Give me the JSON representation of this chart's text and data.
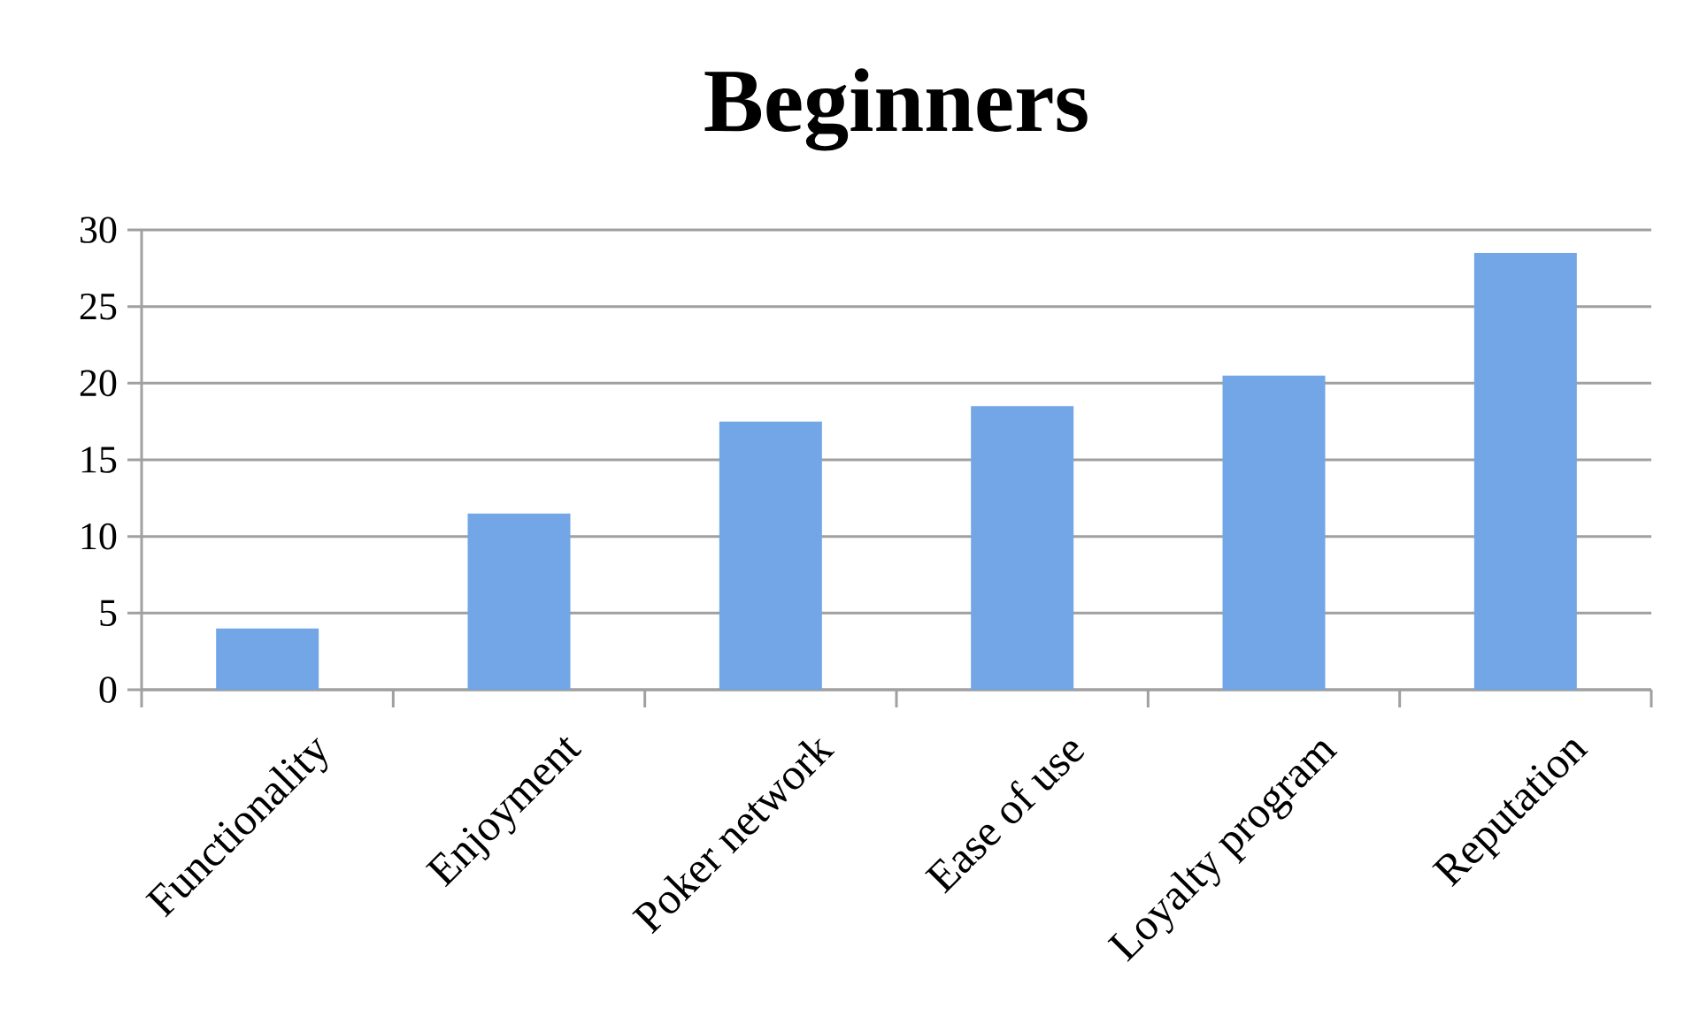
{
  "chart_data": {
    "type": "bar",
    "title": "Beginners",
    "categories": [
      "Functionality",
      "Enjoyment",
      "Poker network",
      "Ease of use",
      "Loyalty program",
      "Reputation"
    ],
    "values": [
      4,
      11.5,
      17.5,
      18.5,
      20.5,
      28.5
    ],
    "color": "#72a6e6",
    "ylim": [
      0,
      30
    ],
    "yticks": [
      0,
      5,
      10,
      15,
      20,
      25,
      30
    ],
    "grid": "y"
  }
}
